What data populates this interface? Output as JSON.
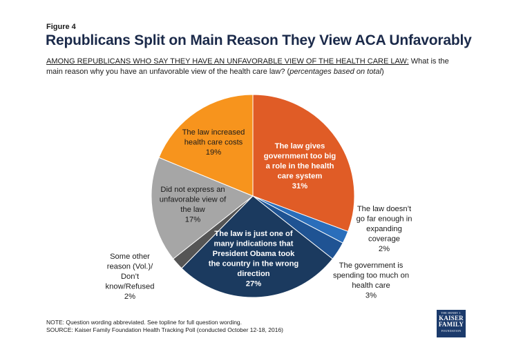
{
  "figure_label": "Figure 4",
  "title": "Republicans Split on Main Reason They View ACA Unfavorably",
  "question": {
    "lead": "AMONG REPUBLICANS WHO SAY THEY HAVE AN UNFAVORABLE VIEW OF THE HEALTH CARE LAW:",
    "body": " What is the main reason why you have an unfavorable view of the health care law? (",
    "note": "percentages based on total",
    "close": ")"
  },
  "chart_data": {
    "type": "pie",
    "slices": [
      {
        "label_lines": [
          "The law gives",
          "government too big",
          "a role in the health",
          "care system"
        ],
        "value": 31,
        "value_label": "31%",
        "color": "#e05c26"
      },
      {
        "label_lines": [
          "The law doesn’t",
          "go far enough in",
          "expanding",
          "coverage"
        ],
        "value": 2,
        "value_label": "2%",
        "color": "#2a6ebb"
      },
      {
        "label_lines": [
          "The government is",
          "spending too much on",
          "health care"
        ],
        "value": 3,
        "value_label": "3%",
        "color": "#1f5393"
      },
      {
        "label_lines": [
          "The law is just one of",
          "many indications that",
          "President Obama took",
          "the country in the wrong",
          "direction"
        ],
        "value": 27,
        "value_label": "27%",
        "color": "#1b3a5f"
      },
      {
        "label_lines": [
          "Some other",
          "reason (Vol.)/",
          "Don’t",
          "know/Refused"
        ],
        "value": 2,
        "value_label": "2%",
        "color": "#555555"
      },
      {
        "label_lines": [
          "Did not express an",
          "unfavorable view of",
          "the law"
        ],
        "value": 17,
        "value_label": "17%",
        "color": "#a6a6a6"
      },
      {
        "label_lines": [
          "The law increased",
          "health care costs"
        ],
        "value": 19,
        "value_label": "19%",
        "color": "#f7941d"
      }
    ]
  },
  "notes": {
    "line1": "NOTE: Question wording abbreviated. See topline for full question wording.",
    "line2": "SOURCE: Kaiser Family Foundation Health Tracking Poll (conducted October 12-18, 2016)"
  },
  "logo": {
    "top": "THE HENRY J.",
    "line1": "KAISER",
    "line2": "FAMILY",
    "bottom": "FOUNDATION"
  }
}
